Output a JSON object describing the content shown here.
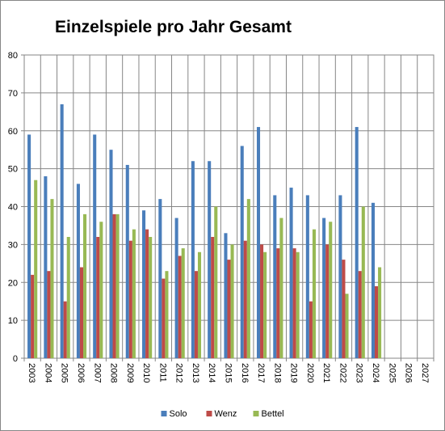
{
  "chart_data": {
    "type": "bar",
    "title": "Einzelspiele pro Jahr Gesamt",
    "xlabel": "",
    "ylabel": "",
    "ylim": [
      0,
      80
    ],
    "yticks": [
      0,
      10,
      20,
      30,
      40,
      50,
      60,
      70,
      80
    ],
    "grid": true,
    "legend_position": "bottom",
    "categories": [
      "2003",
      "2004",
      "2005",
      "2006",
      "2007",
      "2008",
      "2009",
      "2010",
      "2011",
      "2012",
      "2013",
      "2014",
      "2015",
      "2016",
      "2017",
      "2018",
      "2019",
      "2020",
      "2021",
      "2022",
      "2023",
      "2024",
      "2025",
      "2026",
      "2027"
    ],
    "series": [
      {
        "name": "Solo",
        "color": "#4a7ebb",
        "values": [
          59,
          48,
          67,
          46,
          59,
          55,
          51,
          39,
          42,
          37,
          52,
          52,
          33,
          56,
          61,
          43,
          45,
          43,
          37,
          43,
          61,
          41,
          null,
          null,
          null
        ]
      },
      {
        "name": "Wenz",
        "color": "#be4b48",
        "values": [
          22,
          23,
          15,
          24,
          32,
          38,
          31,
          34,
          21,
          27,
          23,
          32,
          26,
          31,
          30,
          29,
          29,
          15,
          30,
          26,
          23,
          19,
          null,
          null,
          null
        ]
      },
      {
        "name": "Bettel",
        "color": "#98b954",
        "values": [
          47,
          42,
          32,
          38,
          36,
          38,
          34,
          32,
          23,
          29,
          28,
          40,
          30,
          42,
          28,
          37,
          28,
          34,
          36,
          17,
          40,
          24,
          null,
          null,
          null
        ]
      }
    ]
  }
}
